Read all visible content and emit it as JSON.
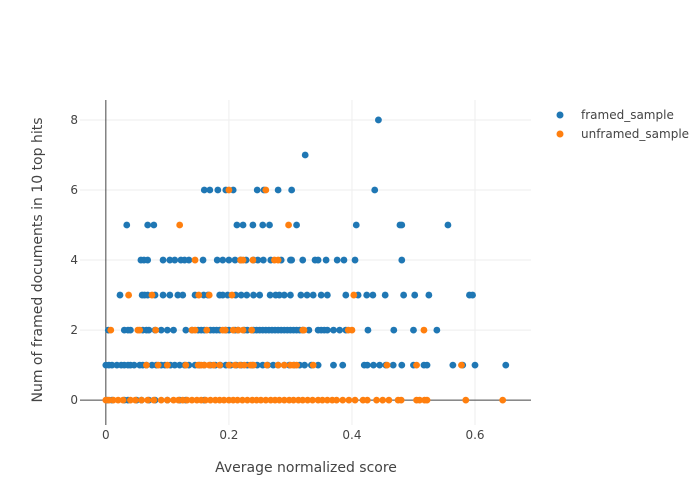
{
  "chart_data": {
    "type": "scatter",
    "title": "",
    "xlabel": "Average normalized score",
    "ylabel": "Num of framed documents in 10 top hits",
    "xlim": [
      -0.042,
      0.691
    ],
    "ylim": [
      -0.71,
      8.57
    ],
    "xticks": [
      0,
      0.2,
      0.4,
      0.6
    ],
    "xtick_labels": [
      "0",
      "0.2",
      "0.4",
      "0.6"
    ],
    "yticks": [
      0,
      2,
      4,
      6,
      8
    ],
    "ytick_labels": [
      "0",
      "2",
      "4",
      "6",
      "8"
    ],
    "grid": true,
    "legend_position": "top-right",
    "series": [
      {
        "name": "framed_sample",
        "color": "#1f77b4",
        "rows": {
          "8": [
            0.443
          ],
          "7": [
            0.324
          ],
          "6": [
            0.16,
            0.169,
            0.182,
            0.195,
            0.207,
            0.246,
            0.257,
            0.28,
            0.302,
            0.437
          ],
          "5": [
            0.034,
            0.068,
            0.078,
            0.213,
            0.223,
            0.239,
            0.255,
            0.266,
            0.31,
            0.407,
            0.478,
            0.481,
            0.556
          ],
          "4": [
            0.057,
            0.062,
            0.068,
            0.093,
            0.104,
            0.112,
            0.122,
            0.128,
            0.135,
            0.158,
            0.181,
            0.19,
            0.2,
            0.21,
            0.219,
            0.228,
            0.24,
            0.247,
            0.256,
            0.268,
            0.285,
            0.3,
            0.302,
            0.32,
            0.34,
            0.345,
            0.358,
            0.376,
            0.387,
            0.405,
            0.481
          ],
          "3": [
            0.023,
            0.059,
            0.063,
            0.068,
            0.08,
            0.093,
            0.104,
            0.117,
            0.125,
            0.145,
            0.159,
            0.166,
            0.185,
            0.19,
            0.198,
            0.211,
            0.22,
            0.229,
            0.24,
            0.25,
            0.267,
            0.276,
            0.282,
            0.29,
            0.3,
            0.317,
            0.327,
            0.337,
            0.35,
            0.36,
            0.39,
            0.41,
            0.424,
            0.434,
            0.454,
            0.484,
            0.502,
            0.525,
            0.591,
            0.596
          ],
          "2": [
            0.004,
            0.03,
            0.036,
            0.04,
            0.06,
            0.066,
            0.07,
            0.08,
            0.09,
            0.1,
            0.11,
            0.13,
            0.14,
            0.15,
            0.155,
            0.16,
            0.17,
            0.175,
            0.18,
            0.185,
            0.195,
            0.2,
            0.21,
            0.215,
            0.225,
            0.23,
            0.24,
            0.245,
            0.25,
            0.255,
            0.26,
            0.265,
            0.27,
            0.275,
            0.28,
            0.285,
            0.29,
            0.295,
            0.3,
            0.305,
            0.31,
            0.315,
            0.32,
            0.33,
            0.345,
            0.35,
            0.355,
            0.36,
            0.37,
            0.38,
            0.39,
            0.426,
            0.468,
            0.5,
            0.538
          ],
          "1": [
            0.0,
            0.005,
            0.01,
            0.018,
            0.025,
            0.03,
            0.036,
            0.04,
            0.046,
            0.055,
            0.06,
            0.066,
            0.075,
            0.082,
            0.09,
            0.096,
            0.105,
            0.112,
            0.12,
            0.128,
            0.135,
            0.145,
            0.152,
            0.16,
            0.17,
            0.178,
            0.186,
            0.195,
            0.203,
            0.212,
            0.22,
            0.23,
            0.238,
            0.246,
            0.255,
            0.263,
            0.272,
            0.28,
            0.29,
            0.298,
            0.306,
            0.315,
            0.323,
            0.334,
            0.345,
            0.37,
            0.385,
            0.42,
            0.425,
            0.435,
            0.445,
            0.455,
            0.467,
            0.481,
            0.5,
            0.517,
            0.522,
            0.564,
            0.58,
            0.6,
            0.65
          ],
          "0": [
            0.002,
            0.01,
            0.03,
            0.036,
            0.05,
            0.058,
            0.07,
            0.08,
            0.1,
            0.12,
            0.13,
            0.16
          ]
        }
      },
      {
        "name": "unframed_sample",
        "color": "#ff7f0e",
        "rows": {
          "6": [
            0.2,
            0.26
          ],
          "5": [
            0.12,
            0.297
          ],
          "4": [
            0.145,
            0.219,
            0.223,
            0.239,
            0.274,
            0.28
          ],
          "3": [
            0.037,
            0.075,
            0.151,
            0.168,
            0.205,
            0.403
          ],
          "2": [
            0.008,
            0.052,
            0.055,
            0.081,
            0.14,
            0.145,
            0.164,
            0.19,
            0.194,
            0.207,
            0.215,
            0.223,
            0.237,
            0.32,
            0.322,
            0.394,
            0.4,
            0.517
          ],
          "1": [
            0.066,
            0.085,
            0.1,
            0.13,
            0.15,
            0.155,
            0.16,
            0.168,
            0.175,
            0.185,
            0.2,
            0.21,
            0.218,
            0.225,
            0.235,
            0.24,
            0.262,
            0.28,
            0.29,
            0.3,
            0.305,
            0.31,
            0.337,
            0.457,
            0.505,
            0.578
          ],
          "0": [
            0.0,
            0.005,
            0.012,
            0.02,
            0.028,
            0.04,
            0.048,
            0.058,
            0.068,
            0.078,
            0.09,
            0.1,
            0.11,
            0.118,
            0.125,
            0.132,
            0.14,
            0.148,
            0.155,
            0.162,
            0.17,
            0.178,
            0.185,
            0.192,
            0.2,
            0.207,
            0.214,
            0.222,
            0.23,
            0.238,
            0.245,
            0.252,
            0.26,
            0.268,
            0.275,
            0.282,
            0.29,
            0.298,
            0.305,
            0.313,
            0.32,
            0.328,
            0.336,
            0.345,
            0.352,
            0.36,
            0.368,
            0.375,
            0.385,
            0.395,
            0.405,
            0.418,
            0.425,
            0.44,
            0.45,
            0.46,
            0.475,
            0.48,
            0.505,
            0.51,
            0.518,
            0.522,
            0.585,
            0.645
          ]
        }
      }
    ]
  }
}
